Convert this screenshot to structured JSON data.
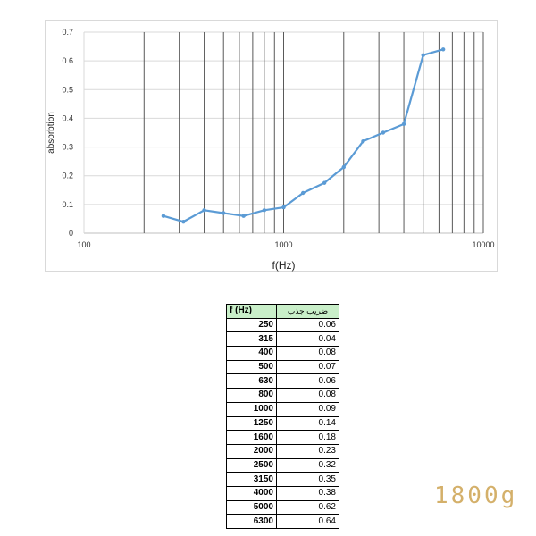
{
  "chart_data": {
    "type": "line",
    "title": "",
    "xlabel": "f(Hz)",
    "ylabel": "absorbtion",
    "xscale": "log",
    "xlim": [
      100,
      10000
    ],
    "ylim": [
      0,
      0.7
    ],
    "x_ticks": [
      "100",
      "1000",
      "10000"
    ],
    "y_ticks": [
      "0",
      "0.1",
      "0.2",
      "0.3",
      "0.4",
      "0.5",
      "0.6",
      "0.7"
    ],
    "grid": true,
    "legend": "none",
    "series_color": "#5b9bd5",
    "series": [
      {
        "x": [
          250,
          315,
          400,
          500,
          630,
          800,
          1000,
          1250,
          1600,
          2000,
          2500,
          3150,
          4000,
          5000,
          6300
        ],
        "y": [
          0.06,
          0.04,
          0.08,
          0.07,
          0.06,
          0.08,
          0.09,
          0.14,
          0.175,
          0.23,
          0.32,
          0.35,
          0.38,
          0.62,
          0.64
        ]
      }
    ]
  },
  "table": {
    "header_f": "f (Hz)",
    "header_a": "ضریب جذب",
    "rows": [
      {
        "f": "250",
        "a": "0.06"
      },
      {
        "f": "315",
        "a": "0.04"
      },
      {
        "f": "400",
        "a": "0.08"
      },
      {
        "f": "500",
        "a": "0.07"
      },
      {
        "f": "630",
        "a": "0.06"
      },
      {
        "f": "800",
        "a": "0.08"
      },
      {
        "f": "1000",
        "a": "0.09"
      },
      {
        "f": "1250",
        "a": "0.14"
      },
      {
        "f": "1600",
        "a": "0.18"
      },
      {
        "f": "2000",
        "a": "0.23"
      },
      {
        "f": "2500",
        "a": "0.32"
      },
      {
        "f": "3150",
        "a": "0.35"
      },
      {
        "f": "4000",
        "a": "0.38"
      },
      {
        "f": "5000",
        "a": "0.62"
      },
      {
        "f": "6300",
        "a": "0.64"
      }
    ]
  },
  "watermark": "1800g"
}
